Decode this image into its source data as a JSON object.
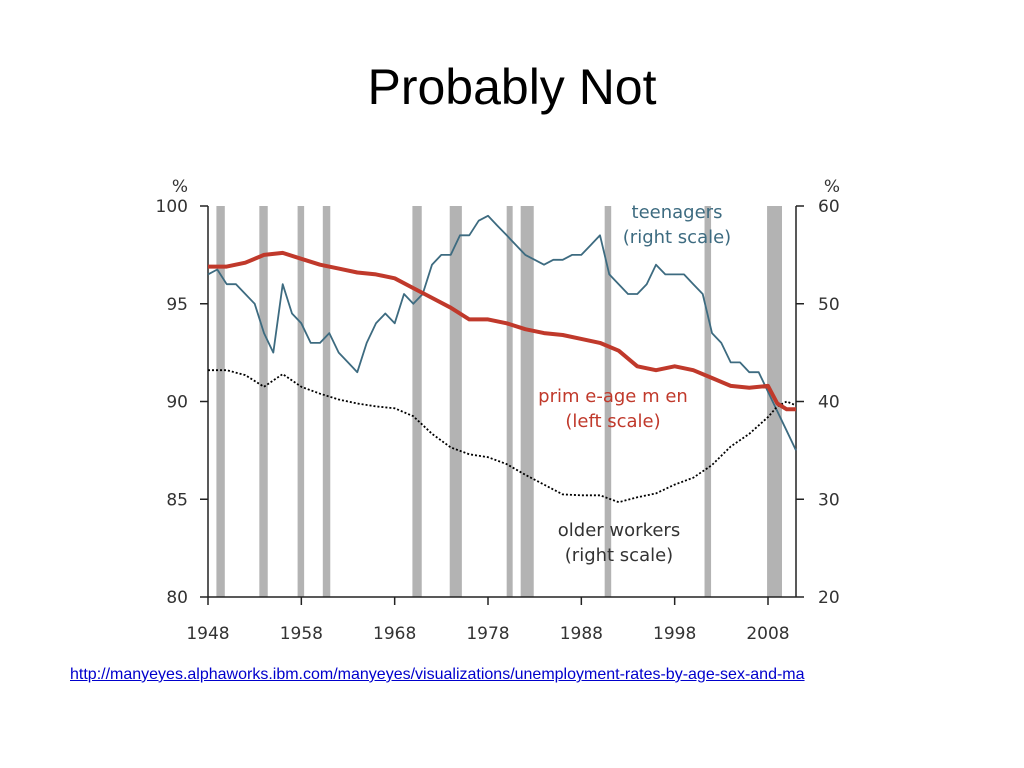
{
  "slide": {
    "title": "Probably Not",
    "source_link": "http://manyeyes.alphaworks.ibm.com/manyeyes/visualizations/unemployment-rates-by-age-sex-and-ma"
  },
  "chart_data": {
    "type": "line",
    "title": "",
    "xlabel": "",
    "xlim": [
      1948,
      2011
    ],
    "x_ticks": [
      1948,
      1958,
      1968,
      1978,
      1988,
      1998,
      2008
    ],
    "left_axis": {
      "unit": "%",
      "ylim": [
        80,
        100
      ],
      "ticks": [
        80,
        85,
        90,
        95,
        100
      ]
    },
    "right_axis": {
      "unit": "%",
      "ylim": [
        20,
        60
      ],
      "ticks": [
        20,
        30,
        40,
        50,
        60
      ]
    },
    "grid": false,
    "recession_shading": [
      [
        1948.9,
        1949.8
      ],
      [
        1953.5,
        1954.4
      ],
      [
        1957.6,
        1958.3
      ],
      [
        1960.3,
        1961.1
      ],
      [
        1969.9,
        1970.9
      ],
      [
        1973.9,
        1975.2
      ],
      [
        1980.0,
        1980.5
      ],
      [
        1981.5,
        1982.9
      ],
      [
        1990.5,
        1991.2
      ],
      [
        2001.2,
        2001.9
      ],
      [
        2007.9,
        2009.5
      ]
    ],
    "colors": {
      "teenagers": "#3d6b80",
      "prime_age_men": "#c0392b",
      "older_workers": "#000000",
      "shading": "#b3b3b3",
      "text": "#333333"
    },
    "series": [
      {
        "name": "teenagers",
        "annotation": [
          "teenagers",
          "(right scale)"
        ],
        "axis": "right",
        "line_style": "solid",
        "x": [
          1948,
          1949,
          1950,
          1951,
          1952,
          1953,
          1954,
          1955,
          1956,
          1957,
          1958,
          1959,
          1960,
          1961,
          1962,
          1963,
          1964,
          1965,
          1966,
          1967,
          1968,
          1969,
          1970,
          1971,
          1972,
          1973,
          1974,
          1975,
          1976,
          1977,
          1978,
          1979,
          1980,
          1981,
          1982,
          1983,
          1984,
          1985,
          1986,
          1987,
          1988,
          1989,
          1990,
          1991,
          1992,
          1993,
          1994,
          1995,
          1996,
          1997,
          1998,
          1999,
          2000,
          2001,
          2002,
          2003,
          2004,
          2005,
          2006,
          2007,
          2008,
          2009,
          2010,
          2011
        ],
        "y": [
          53,
          53.5,
          52,
          52,
          51,
          50,
          47,
          45,
          52,
          49,
          48,
          46,
          46,
          47,
          45,
          44,
          43,
          46,
          48,
          49,
          48,
          51,
          50,
          51,
          54,
          55,
          55,
          57,
          57,
          58.5,
          59,
          58,
          57,
          56,
          55,
          54.5,
          54,
          54.5,
          54.5,
          55,
          55,
          56,
          57,
          53,
          52,
          51,
          51,
          52,
          54,
          53,
          53,
          53,
          52,
          51,
          47,
          46,
          44,
          44,
          43,
          43,
          41,
          39,
          37,
          35
        ]
      },
      {
        "name": "prime-age men",
        "annotation": [
          "prim e-age m en",
          "(left scale)"
        ],
        "axis": "left",
        "line_style": "solid",
        "x": [
          1948,
          1950,
          1952,
          1954,
          1956,
          1958,
          1960,
          1962,
          1964,
          1966,
          1968,
          1970,
          1972,
          1974,
          1976,
          1978,
          1980,
          1982,
          1984,
          1986,
          1988,
          1990,
          1992,
          1994,
          1996,
          1998,
          2000,
          2002,
          2004,
          2006,
          2008,
          2009,
          2010,
          2011
        ],
        "y": [
          96.9,
          96.9,
          97.1,
          97.5,
          97.6,
          97.3,
          97.0,
          96.8,
          96.6,
          96.5,
          96.3,
          95.8,
          95.3,
          94.8,
          94.2,
          94.2,
          94.0,
          93.7,
          93.5,
          93.4,
          93.2,
          93.0,
          92.6,
          91.8,
          91.6,
          91.8,
          91.6,
          91.2,
          90.8,
          90.7,
          90.8,
          89.9,
          89.6,
          89.6
        ]
      },
      {
        "name": "older workers",
        "annotation": [
          "older workers",
          "(right scale)"
        ],
        "axis": "right",
        "line_style": "dotted",
        "x": [
          1948,
          1950,
          1952,
          1954,
          1956,
          1958,
          1960,
          1962,
          1964,
          1966,
          1968,
          1970,
          1972,
          1974,
          1976,
          1978,
          1980,
          1982,
          1984,
          1986,
          1988,
          1990,
          1992,
          1994,
          1996,
          1998,
          2000,
          2002,
          2004,
          2006,
          2008,
          2009,
          2010,
          2011
        ],
        "y": [
          43.2,
          43.2,
          42.7,
          41.5,
          42.8,
          41.5,
          40.8,
          40.2,
          39.8,
          39.5,
          39.3,
          38.5,
          36.7,
          35.3,
          34.6,
          34.3,
          33.6,
          32.5,
          31.5,
          30.5,
          30.4,
          30.4,
          29.7,
          30.2,
          30.6,
          31.5,
          32.2,
          33.5,
          35.4,
          36.7,
          38.4,
          39.5,
          40.0,
          39.6
        ]
      }
    ]
  }
}
